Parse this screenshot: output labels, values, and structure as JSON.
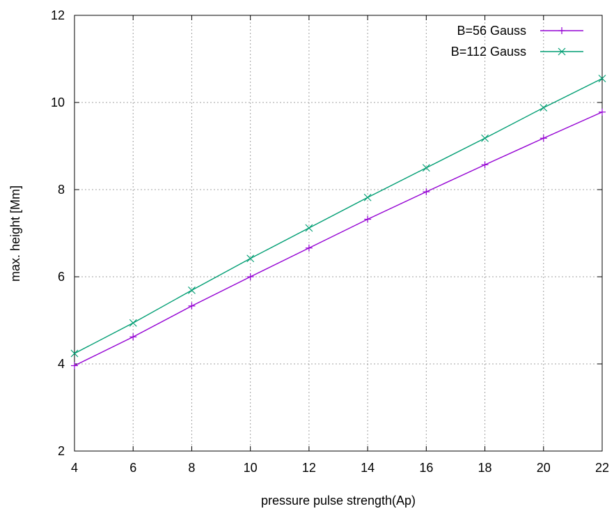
{
  "chart_data": {
    "type": "line",
    "title": "",
    "xlabel": "pressure pulse strength(Ap)",
    "ylabel": "max. height [Mm]",
    "xlim": [
      4,
      22
    ],
    "ylim": [
      2,
      12
    ],
    "xticks": [
      4,
      6,
      8,
      10,
      12,
      14,
      16,
      18,
      20,
      22
    ],
    "yticks": [
      2,
      4,
      6,
      8,
      10,
      12
    ],
    "x": [
      4,
      6,
      8,
      10,
      12,
      14,
      16,
      18,
      20,
      22
    ],
    "grid": true,
    "legend_position": "top-right",
    "series": [
      {
        "name": "B=56 Gauss",
        "color": "#9400d3",
        "marker": "plus",
        "values": [
          3.96,
          4.62,
          5.33,
          6.0,
          6.66,
          7.32,
          7.95,
          8.57,
          9.18,
          9.78
        ]
      },
      {
        "name": "B=112 Gauss",
        "color": "#009e73",
        "marker": "cross",
        "values": [
          4.24,
          4.94,
          5.69,
          6.42,
          7.12,
          7.82,
          8.5,
          9.18,
          9.88,
          10.55
        ]
      }
    ]
  }
}
